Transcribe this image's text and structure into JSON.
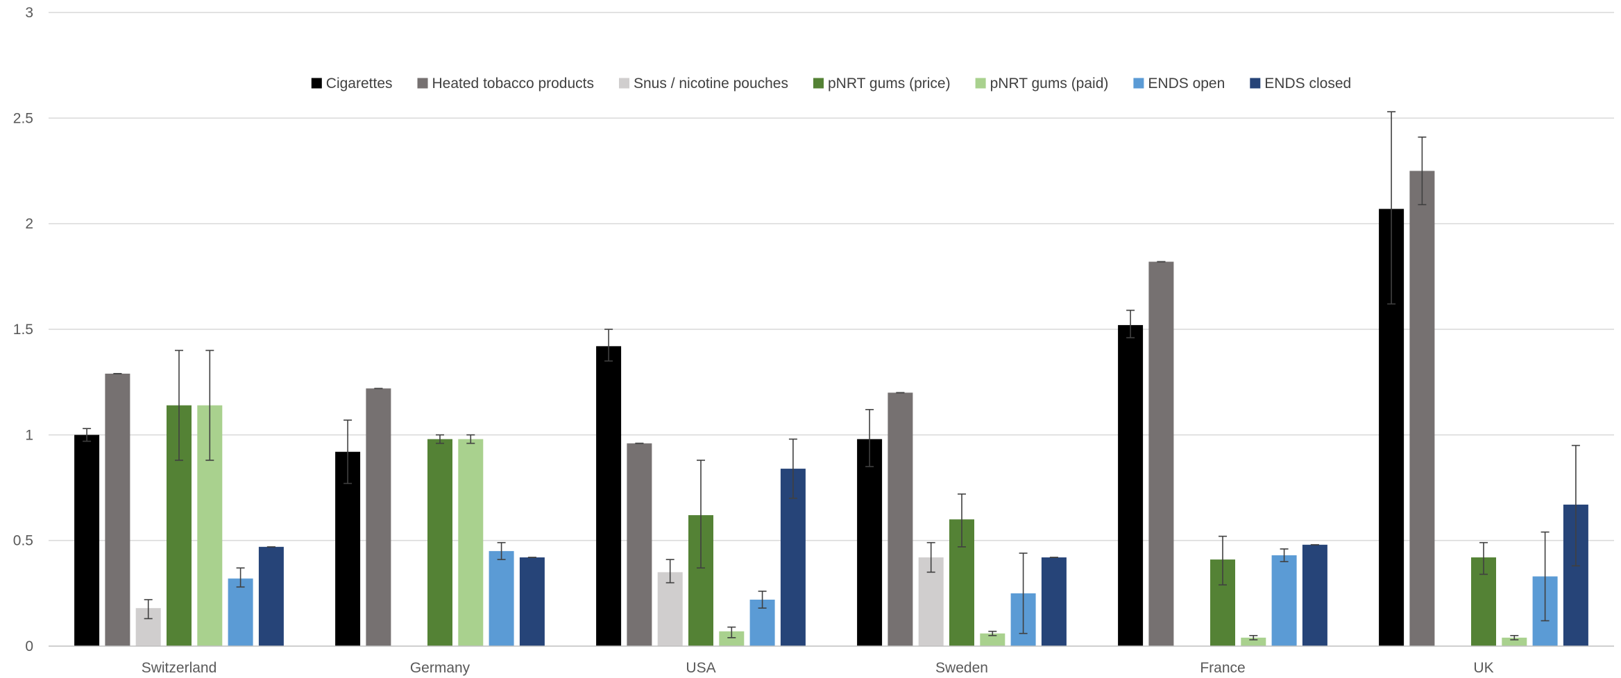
{
  "chart_data": {
    "type": "bar",
    "title": "",
    "xlabel": "",
    "ylabel": "",
    "ylim": [
      0,
      3
    ],
    "yticks": [
      0,
      0.5,
      1,
      1.5,
      2,
      2.5,
      3
    ],
    "ytick_labels": [
      "0",
      "0.5",
      "1",
      "1.5",
      "2",
      "2.5",
      "3"
    ],
    "grid": true,
    "legend_position": "top",
    "categories": [
      "Switzerland",
      "Germany",
      "USA",
      "Sweden",
      "France",
      "UK"
    ],
    "series": [
      {
        "name": "Cigarettes",
        "color": "#000000",
        "values": [
          1.0,
          0.92,
          1.42,
          0.98,
          1.52,
          2.07
        ],
        "err_low": [
          0.97,
          0.77,
          1.35,
          0.85,
          1.46,
          1.62
        ],
        "err_high": [
          1.03,
          1.07,
          1.5,
          1.12,
          1.59,
          2.53
        ]
      },
      {
        "name": "Heated tobacco products",
        "color": "#767171",
        "values": [
          1.29,
          1.22,
          0.96,
          1.2,
          1.82,
          2.25
        ],
        "err_low": [
          1.29,
          1.22,
          0.96,
          1.2,
          1.82,
          2.09
        ],
        "err_high": [
          1.29,
          1.22,
          0.96,
          1.2,
          1.82,
          2.41
        ]
      },
      {
        "name": "Snus / nicotine pouches",
        "color": "#d0cece",
        "values": [
          0.18,
          null,
          0.35,
          0.42,
          null,
          null
        ],
        "err_low": [
          0.13,
          null,
          0.3,
          0.35,
          null,
          null
        ],
        "err_high": [
          0.22,
          null,
          0.41,
          0.49,
          null,
          null
        ]
      },
      {
        "name": "pNRT gums (price)",
        "color": "#548235",
        "values": [
          1.14,
          0.98,
          0.62,
          0.6,
          0.41,
          0.42
        ],
        "err_low": [
          0.88,
          0.96,
          0.37,
          0.47,
          0.29,
          0.34
        ],
        "err_high": [
          1.4,
          1.0,
          0.88,
          0.72,
          0.52,
          0.49
        ]
      },
      {
        "name": "pNRT gums (paid)",
        "color": "#a9d18e",
        "values": [
          1.14,
          0.98,
          0.07,
          0.06,
          0.04,
          0.04
        ],
        "err_low": [
          0.88,
          0.96,
          0.04,
          0.05,
          0.03,
          0.03
        ],
        "err_high": [
          1.4,
          1.0,
          0.09,
          0.07,
          0.05,
          0.05
        ]
      },
      {
        "name": "ENDS open",
        "color": "#5b9bd5",
        "values": [
          0.32,
          0.45,
          0.22,
          0.25,
          0.43,
          0.33
        ],
        "err_low": [
          0.28,
          0.41,
          0.18,
          0.06,
          0.4,
          0.12
        ],
        "err_high": [
          0.37,
          0.49,
          0.26,
          0.44,
          0.46,
          0.54
        ]
      },
      {
        "name": "ENDS closed",
        "color": "#264478",
        "values": [
          0.47,
          0.42,
          0.84,
          0.42,
          0.48,
          0.67
        ],
        "err_low": [
          0.47,
          0.42,
          0.7,
          0.42,
          0.48,
          0.38
        ],
        "err_high": [
          0.47,
          0.42,
          0.98,
          0.42,
          0.48,
          0.95
        ]
      }
    ]
  }
}
